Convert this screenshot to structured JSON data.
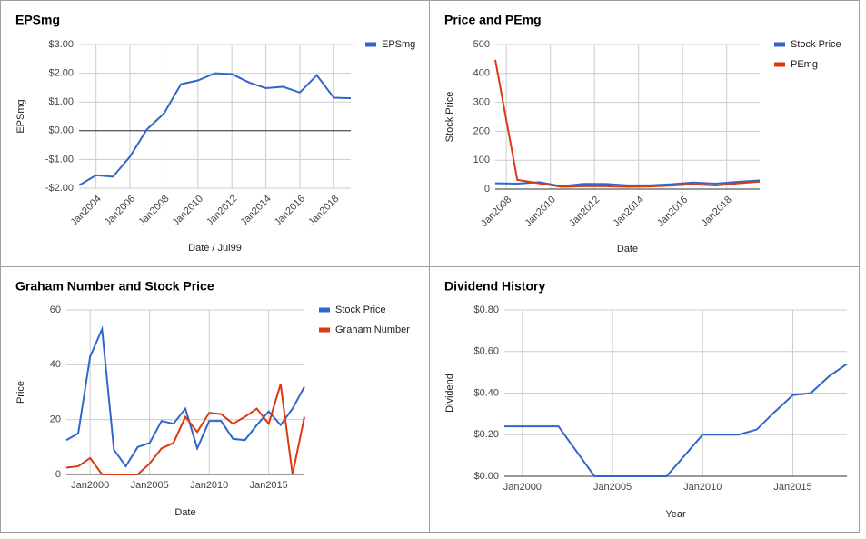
{
  "chart_data": [
    {
      "type": "line",
      "title": "EPSmg",
      "xlabel": "Date / Jul99",
      "ylabel": "EPSmg",
      "legend": "right",
      "grid": true,
      "rotate_xticks": true,
      "x": [
        2003,
        2004,
        2005,
        2006,
        2007,
        2008,
        2009,
        2010,
        2011,
        2012,
        2013,
        2014,
        2015,
        2016,
        2017,
        2018,
        2019
      ],
      "series": [
        {
          "name": "EPSmg",
          "color": "#3366cc",
          "values": [
            -1.9,
            -1.55,
            -1.6,
            -0.9,
            0.05,
            0.6,
            1.62,
            1.75,
            2.0,
            1.97,
            1.68,
            1.48,
            1.53,
            1.33,
            1.93,
            1.15,
            1.13
          ]
        }
      ],
      "xlim": [
        2003,
        2019
      ],
      "xticks": [
        {
          "value": 2004,
          "label": "Jan2004"
        },
        {
          "value": 2006,
          "label": "Jan2006"
        },
        {
          "value": 2008,
          "label": "Jan2008"
        },
        {
          "value": 2010,
          "label": "Jan2010"
        },
        {
          "value": 2012,
          "label": "Jan2012"
        },
        {
          "value": 2014,
          "label": "Jan2014"
        },
        {
          "value": 2016,
          "label": "Jan2016"
        },
        {
          "value": 2018,
          "label": "Jan2018"
        }
      ],
      "ylim": [
        -2,
        3
      ],
      "yticks": [
        {
          "value": -2,
          "label": "-$2.00"
        },
        {
          "value": -1,
          "label": "-$1.00"
        },
        {
          "value": 0,
          "label": "$0.00"
        },
        {
          "value": 1,
          "label": "$1.00"
        },
        {
          "value": 2,
          "label": "$2.00"
        },
        {
          "value": 3,
          "label": "$3.00"
        }
      ]
    },
    {
      "type": "line",
      "title": "Price and PEmg",
      "xlabel": "Date",
      "ylabel": "Stock Price",
      "legend": "right",
      "grid": true,
      "rotate_xticks": true,
      "x": [
        2007.5,
        2008.5,
        2009.5,
        2010.5,
        2011.5,
        2012.5,
        2013.5,
        2014.5,
        2015.5,
        2016.5,
        2017.5,
        2018.5,
        2019.5
      ],
      "series": [
        {
          "name": "Stock Price",
          "color": "#3366cc",
          "values": [
            20,
            19,
            24,
            10,
            18,
            18,
            13,
            13,
            17,
            23,
            19,
            25,
            30
          ]
        },
        {
          "name": "PEmg",
          "color": "#dc3912",
          "values": [
            447,
            32,
            20,
            8,
            10,
            10,
            8,
            9,
            12,
            17,
            12,
            20,
            26
          ]
        }
      ],
      "xlim": [
        2007.5,
        2019.5
      ],
      "xticks": [
        {
          "value": 2008,
          "label": "Jan2008"
        },
        {
          "value": 2010,
          "label": "Jan2010"
        },
        {
          "value": 2012,
          "label": "Jan2012"
        },
        {
          "value": 2014,
          "label": "Jan2014"
        },
        {
          "value": 2016,
          "label": "Jan2016"
        },
        {
          "value": 2018,
          "label": "Jan2018"
        }
      ],
      "ylim": [
        0,
        500
      ],
      "yticks": [
        0,
        100,
        200,
        300,
        400,
        500
      ]
    },
    {
      "type": "line",
      "title": "Graham Number and Stock Price",
      "xlabel": "Date",
      "ylabel": "Price",
      "legend": "right",
      "grid": true,
      "rotate_xticks": false,
      "x": [
        1998,
        1999,
        2000,
        2001,
        2002,
        2003,
        2004,
        2005,
        2006,
        2007,
        2008,
        2009,
        2010,
        2011,
        2012,
        2013,
        2014,
        2015,
        2016,
        2017,
        2018
      ],
      "series": [
        {
          "name": "Stock Price",
          "color": "#3366cc",
          "values": [
            12.5,
            15,
            43,
            53,
            9,
            3,
            10,
            11.5,
            19.5,
            18.5,
            24,
            9.5,
            19.5,
            19.5,
            13,
            12.5,
            18,
            23,
            18,
            24,
            32
          ]
        },
        {
          "name": "Graham Number",
          "color": "#dc3912",
          "values": [
            2.5,
            3,
            6,
            0,
            0,
            0,
            0,
            4,
            9.5,
            11.5,
            21,
            15.5,
            22.5,
            22,
            18.5,
            21,
            24,
            18.5,
            33,
            0,
            21
          ]
        }
      ],
      "xlim": [
        1998,
        2018
      ],
      "xticks": [
        {
          "value": 2000,
          "label": "Jan2000"
        },
        {
          "value": 2005,
          "label": "Jan2005"
        },
        {
          "value": 2010,
          "label": "Jan2010"
        },
        {
          "value": 2015,
          "label": "Jan2015"
        }
      ],
      "ylim": [
        0,
        60
      ],
      "yticks": [
        0,
        20,
        40,
        60
      ]
    },
    {
      "type": "line",
      "title": "Dividend History",
      "xlabel": "Year",
      "ylabel": "Dividend",
      "legend": "none",
      "grid": true,
      "rotate_xticks": false,
      "x": [
        1999,
        2000,
        2001,
        2002,
        2003,
        2004,
        2005,
        2006,
        2007,
        2008,
        2009,
        2010,
        2011,
        2012,
        2013,
        2014,
        2015,
        2016,
        2017,
        2018
      ],
      "series": [
        {
          "name": "Dividend",
          "color": "#3366cc",
          "values": [
            0.24,
            0.24,
            0.24,
            0.24,
            0.12,
            0,
            0,
            0,
            0,
            0,
            0.1,
            0.2,
            0.2,
            0.2,
            0.225,
            0.31,
            0.39,
            0.4,
            0.48,
            0.54
          ]
        }
      ],
      "xlim": [
        1999,
        2018
      ],
      "xticks": [
        {
          "value": 2000,
          "label": "Jan2000"
        },
        {
          "value": 2005,
          "label": "Jan2005"
        },
        {
          "value": 2010,
          "label": "Jan2010"
        },
        {
          "value": 2015,
          "label": "Jan2015"
        }
      ],
      "ylim": [
        0,
        0.8
      ],
      "yticks": [
        {
          "value": 0,
          "label": "$0.00"
        },
        {
          "value": 0.2,
          "label": "$0.20"
        },
        {
          "value": 0.4,
          "label": "$0.40"
        },
        {
          "value": 0.6,
          "label": "$0.60"
        },
        {
          "value": 0.8,
          "label": "$0.80"
        }
      ]
    }
  ]
}
